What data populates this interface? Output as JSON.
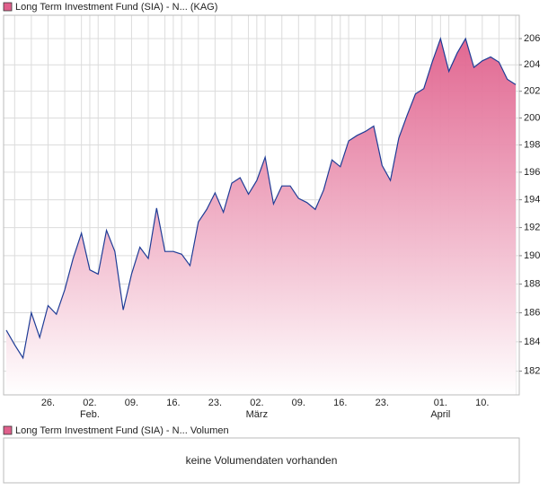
{
  "chart_data": {
    "type": "area",
    "title": "Long Term Investment Fund (SIA) - N... (KAG)",
    "categories": [
      null,
      null,
      null,
      null,
      null,
      "26.",
      null,
      null,
      null,
      null,
      "02.",
      null,
      null,
      null,
      null,
      "09.",
      null,
      null,
      null,
      null,
      "16.",
      null,
      null,
      null,
      null,
      "23.",
      null,
      null,
      null,
      null,
      "02.",
      null,
      null,
      null,
      null,
      "09.",
      null,
      null,
      null,
      null,
      "16.",
      null,
      null,
      null,
      null,
      "23.",
      null,
      null,
      null,
      null,
      null,
      null,
      "01.",
      null,
      null,
      null,
      null,
      "10.",
      null,
      null,
      null,
      null
    ],
    "month_labels": [
      null,
      null,
      null,
      null,
      null,
      null,
      null,
      null,
      null,
      null,
      "Feb.",
      null,
      null,
      null,
      null,
      null,
      null,
      null,
      null,
      null,
      null,
      null,
      null,
      null,
      null,
      null,
      null,
      null,
      null,
      null,
      "März",
      null,
      null,
      null,
      null,
      null,
      null,
      null,
      null,
      null,
      null,
      null,
      null,
      null,
      null,
      null,
      null,
      null,
      null,
      null,
      null,
      null,
      "April",
      null,
      null,
      null,
      null,
      null,
      null,
      null,
      null,
      null
    ],
    "values": [
      184.8,
      183.8,
      182.9,
      186.0,
      184.3,
      186.5,
      185.9,
      187.6,
      189.8,
      191.6,
      189.0,
      188.7,
      191.8,
      190.3,
      186.2,
      188.7,
      190.6,
      189.8,
      193.4,
      190.3,
      190.3,
      190.1,
      189.3,
      192.4,
      193.3,
      194.5,
      193.1,
      195.2,
      195.6,
      194.4,
      195.4,
      197.1,
      193.7,
      195.0,
      195.0,
      194.1,
      193.8,
      193.3,
      194.7,
      196.9,
      196.4,
      198.3,
      198.7,
      199.0,
      199.4,
      196.5,
      195.4,
      198.5,
      200.2,
      201.8,
      202.2,
      204.2,
      206.0,
      203.5,
      204.9,
      206.0,
      203.8,
      204.3,
      204.6,
      204.2,
      202.9,
      202.5
    ],
    "color": "#1f3c96",
    "fill_color": "#e0608c",
    "ylim": [
      180.4,
      207.8
    ],
    "yticks": [
      182,
      184,
      186,
      188,
      190,
      192,
      194,
      196,
      198,
      200,
      202,
      204,
      206
    ],
    "log_scale": true,
    "grid": true,
    "volume_panel": {
      "title": "Long Term Investment Fund (SIA) - N... Volumen",
      "message": "keine Volumendaten vorhanden"
    }
  }
}
